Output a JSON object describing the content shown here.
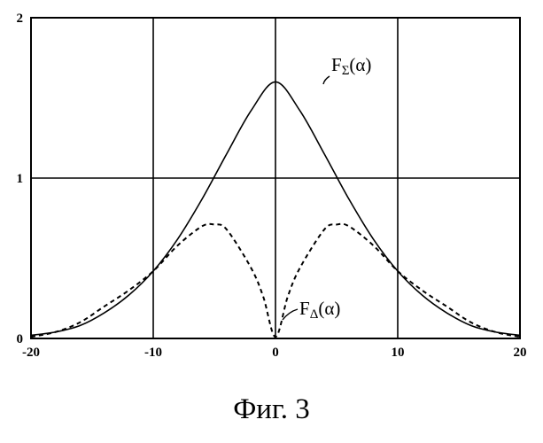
{
  "caption": "Фиг. 3",
  "chart_data": {
    "type": "line",
    "title": "",
    "xlabel": "",
    "ylabel": "",
    "xlim": [
      -20,
      20
    ],
    "ylim": [
      0,
      2
    ],
    "xticks": [
      "-20",
      "-10",
      "0",
      "10",
      "20"
    ],
    "yticks": [
      "0",
      "1",
      "2"
    ],
    "grid": true,
    "series": [
      {
        "name": "FΣ(α)",
        "label_main": "F",
        "label_sub": "Σ",
        "label_tail": "(α)",
        "style": "solid",
        "x": [
          -20,
          -18,
          -16,
          -14,
          -12,
          -10,
          -8,
          -6,
          -4,
          -2,
          0,
          2,
          4,
          6,
          8,
          10,
          12,
          14,
          16,
          18,
          20
        ],
        "y": [
          0.02,
          0.04,
          0.08,
          0.16,
          0.27,
          0.42,
          0.62,
          0.87,
          1.15,
          1.42,
          1.6,
          1.42,
          1.15,
          0.87,
          0.62,
          0.42,
          0.27,
          0.16,
          0.08,
          0.04,
          0.02
        ]
      },
      {
        "name": "FΔ(α)",
        "label_main": "F",
        "label_sub": "Δ",
        "label_tail": "(α)",
        "style": "dashed",
        "x": [
          -20,
          -18,
          -16,
          -14,
          -12,
          -10,
          -8,
          -6,
          -5,
          -4,
          -2,
          -1,
          0,
          1,
          2,
          4,
          5,
          6,
          8,
          10,
          12,
          14,
          16,
          18,
          20
        ],
        "y": [
          0.01,
          0.04,
          0.1,
          0.2,
          0.3,
          0.42,
          0.58,
          0.7,
          0.71,
          0.68,
          0.44,
          0.26,
          0.01,
          0.26,
          0.44,
          0.68,
          0.71,
          0.7,
          0.58,
          0.42,
          0.3,
          0.2,
          0.1,
          0.04,
          0.01
        ]
      }
    ]
  }
}
